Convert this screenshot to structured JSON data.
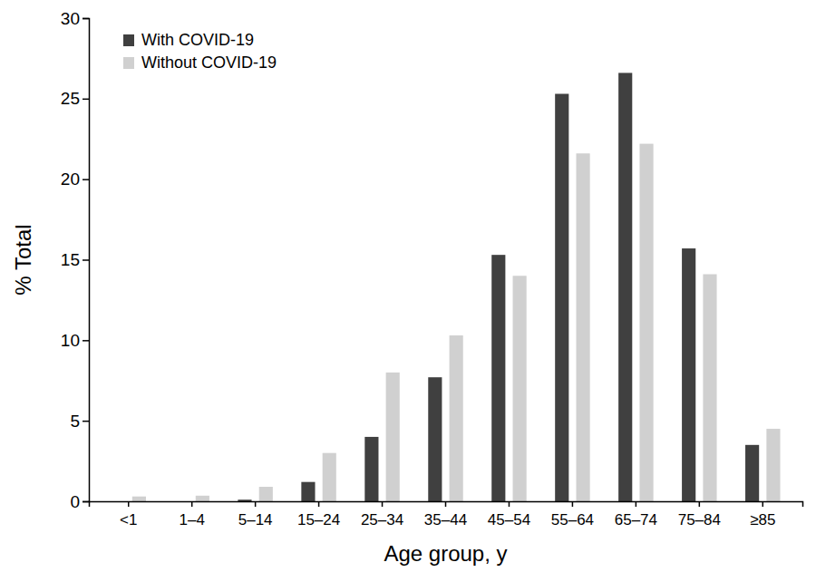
{
  "chart_data": {
    "type": "bar",
    "x_label": "Age group, y",
    "y_label": "% Total",
    "categories": [
      "<1",
      "1–4",
      "5–14",
      "15–24",
      "25–34",
      "35–44",
      "45–54",
      "55–64",
      "65–74",
      "75–84",
      "≥85"
    ],
    "series": [
      {
        "name": "With COVID-19",
        "color": "#404040",
        "values": [
          0,
          0,
          0.1,
          1.2,
          4.0,
          7.7,
          15.3,
          25.3,
          26.6,
          15.7,
          3.5
        ]
      },
      {
        "name": "Without COVID-19",
        "color": "#d0d0d0",
        "values": [
          0.3,
          0.35,
          0.9,
          3.0,
          8.0,
          10.3,
          14.0,
          21.6,
          22.2,
          14.1,
          4.5
        ]
      }
    ],
    "ylim": [
      0,
      30
    ],
    "yticks": [
      0,
      5,
      10,
      15,
      20,
      25,
      30
    ],
    "grid": false,
    "legend": "upper left"
  }
}
